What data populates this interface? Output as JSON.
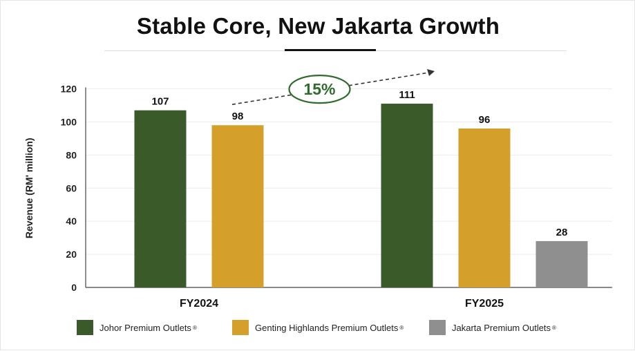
{
  "header": {
    "title": "Stable Core, New Jakarta Growth"
  },
  "chart_data": {
    "type": "bar",
    "title": "Stable Core, New Jakarta Growth",
    "xlabel": "",
    "ylabel": "Revenue (RM' million)",
    "ylim": [
      0,
      120
    ],
    "yticks": [
      0,
      20,
      40,
      60,
      80,
      100,
      120
    ],
    "categories": [
      "FY2024",
      "FY2025"
    ],
    "series": [
      {
        "name": "Johor Premium Outlets",
        "mark": "®",
        "color": "#3b5a2a",
        "values": [
          107,
          111
        ]
      },
      {
        "name": "Genting Highlands Premium Outlets",
        "mark": "®",
        "color": "#d4a02a",
        "values": [
          98,
          96
        ]
      },
      {
        "name": "Jakarta Premium Outlets",
        "mark": "®",
        "color": "#8f8f8f",
        "values": [
          null,
          28
        ]
      }
    ],
    "annotation": {
      "label": "15%",
      "style": "dashed-arrow",
      "from": "FY2024",
      "to": "FY2025",
      "color": "#2f6b2a"
    },
    "grid": true,
    "legend": "bottom"
  }
}
